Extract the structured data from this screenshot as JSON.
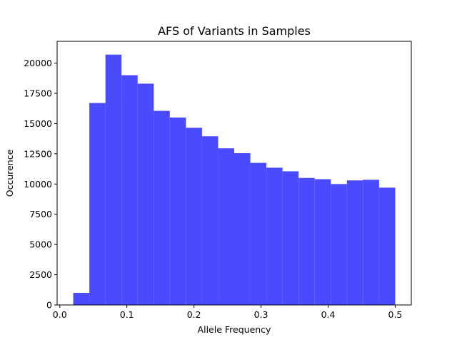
{
  "chart_data": {
    "type": "bar",
    "title": "AFS of Variants in Samples",
    "xlabel": "Allele Frequency",
    "ylabel": "Occurence",
    "xlim": [
      -0.004,
      0.524
    ],
    "ylim": [
      0,
      21800
    ],
    "xticks": [
      0.0,
      0.1,
      0.2,
      0.3,
      0.4,
      0.5
    ],
    "xtick_labels": [
      "0.0",
      "0.1",
      "0.2",
      "0.3",
      "0.4",
      "0.5"
    ],
    "yticks": [
      0,
      2500,
      5000,
      7500,
      10000,
      12500,
      15000,
      17500,
      20000
    ],
    "ytick_labels": [
      "0",
      "2500",
      "5000",
      "7500",
      "10000",
      "12500",
      "15000",
      "17500",
      "20000"
    ],
    "bin_edges": [
      0.02,
      0.044,
      0.068,
      0.092,
      0.116,
      0.14,
      0.164,
      0.188,
      0.212,
      0.236,
      0.26,
      0.284,
      0.308,
      0.332,
      0.356,
      0.38,
      0.404,
      0.428,
      0.452,
      0.476,
      0.5
    ],
    "values": [
      1000,
      16700,
      20700,
      19000,
      18300,
      16050,
      15500,
      14650,
      13950,
      12950,
      12550,
      11750,
      11350,
      11050,
      10500,
      10400,
      10000,
      10300,
      10350,
      9700
    ],
    "bar_color": "#4a4aff",
    "grid": false,
    "legend": "none"
  }
}
